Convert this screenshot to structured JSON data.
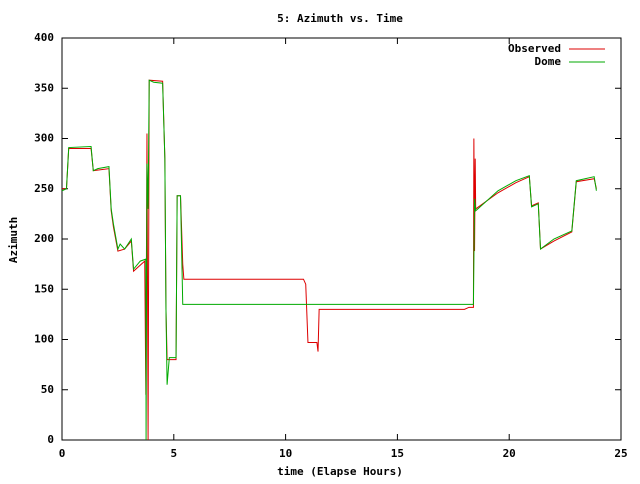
{
  "chart_data": {
    "type": "line",
    "title": "5: Azimuth vs. Time",
    "xlabel": "time (Elapse Hours)",
    "ylabel": "Azimuth",
    "xlim": [
      0,
      25
    ],
    "ylim": [
      0,
      400
    ],
    "xticks": [
      0,
      5,
      10,
      15,
      20,
      25
    ],
    "yticks": [
      0,
      50,
      100,
      150,
      200,
      250,
      300,
      350,
      400
    ],
    "legend": "upper right",
    "series": [
      {
        "name": "Observed",
        "color": "#dd0000",
        "x": [
          0,
          0.2,
          0.3,
          1.3,
          1.4,
          2.1,
          2.2,
          2.3,
          2.5,
          2.8,
          3.1,
          3.2,
          3.7,
          3.75,
          3.8,
          3.85,
          3.9,
          4.5,
          4.6,
          4.65,
          4.7,
          5.1,
          5.15,
          5.3,
          5.4,
          5.45,
          10.8,
          10.9,
          11.0,
          11.4,
          11.45,
          11.5,
          18.0,
          18.2,
          18.4,
          18.42,
          18.45,
          18.48,
          18.5,
          19.5,
          20.3,
          20.9,
          21.0,
          21.3,
          21.4,
          22.0,
          22.8,
          23.0,
          23.8,
          23.9
        ],
        "values": [
          250,
          250,
          290,
          290,
          268,
          270,
          228,
          212,
          188,
          190,
          198,
          168,
          178,
          45,
          305,
          0,
          358,
          357,
          280,
          130,
          80,
          80,
          243,
          243,
          175,
          160,
          160,
          155,
          97,
          97,
          88,
          130,
          130,
          132,
          132,
          300,
          188,
          280,
          230,
          246,
          256,
          262,
          233,
          236,
          190,
          198,
          207,
          257,
          260,
          250
        ]
      },
      {
        "name": "Dome",
        "color": "#00aa00",
        "x": [
          0,
          0.2,
          0.3,
          1.3,
          1.4,
          1.6,
          2.1,
          2.2,
          2.3,
          2.5,
          2.6,
          2.8,
          3.1,
          3.2,
          3.5,
          3.75,
          3.76,
          3.8,
          3.85,
          3.9,
          4.1,
          4.5,
          4.6,
          4.65,
          4.7,
          4.8,
          5.1,
          5.15,
          5.3,
          5.4,
          18.4,
          18.45,
          18.5,
          19.5,
          20.3,
          20.9,
          21.0,
          21.3,
          21.4,
          22.0,
          22.8,
          23.0,
          23.8,
          23.9
        ],
        "values": [
          248,
          250,
          291,
          292,
          268,
          270,
          272,
          230,
          215,
          190,
          195,
          190,
          200,
          170,
          178,
          180,
          0,
          275,
          230,
          358,
          356,
          355,
          280,
          130,
          55,
          82,
          82,
          243,
          243,
          135,
          135,
          240,
          228,
          248,
          258,
          263,
          232,
          235,
          190,
          200,
          208,
          258,
          262,
          248
        ]
      }
    ]
  }
}
